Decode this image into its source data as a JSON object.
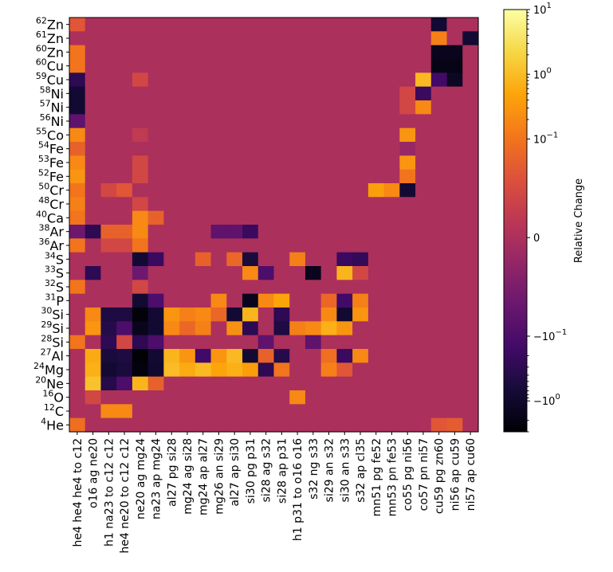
{
  "chart_data": {
    "type": "heatmap",
    "title": "",
    "ylabels": [
      {
        "mass": "62",
        "el": "Zn"
      },
      {
        "mass": "61",
        "el": "Zn"
      },
      {
        "mass": "60",
        "el": "Zn"
      },
      {
        "mass": "60",
        "el": "Cu"
      },
      {
        "mass": "59",
        "el": "Cu"
      },
      {
        "mass": "58",
        "el": "Ni"
      },
      {
        "mass": "57",
        "el": "Ni"
      },
      {
        "mass": "56",
        "el": "Ni"
      },
      {
        "mass": "55",
        "el": "Co"
      },
      {
        "mass": "54",
        "el": "Fe"
      },
      {
        "mass": "53",
        "el": "Fe"
      },
      {
        "mass": "52",
        "el": "Fe"
      },
      {
        "mass": "50",
        "el": "Cr"
      },
      {
        "mass": "48",
        "el": "Cr"
      },
      {
        "mass": "40",
        "el": "Ca"
      },
      {
        "mass": "38",
        "el": "Ar"
      },
      {
        "mass": "36",
        "el": "Ar"
      },
      {
        "mass": "34",
        "el": "S"
      },
      {
        "mass": "33",
        "el": "S"
      },
      {
        "mass": "32",
        "el": "S"
      },
      {
        "mass": "31",
        "el": "P"
      },
      {
        "mass": "30",
        "el": "Si"
      },
      {
        "mass": "29",
        "el": "Si"
      },
      {
        "mass": "28",
        "el": "Si"
      },
      {
        "mass": "27",
        "el": "Al"
      },
      {
        "mass": "24",
        "el": "Mg"
      },
      {
        "mass": "20",
        "el": "Ne"
      },
      {
        "mass": "16",
        "el": "O"
      },
      {
        "mass": "12",
        "el": "C"
      },
      {
        "mass": "4",
        "el": "He"
      }
    ],
    "xlabels": [
      "he4 he4 he4 to c12",
      "o16 ag ne20",
      "h1 na23 to c12 c12",
      "he4 ne20 to c12 c12",
      "ne20 ag mg24",
      "na23 ap mg24",
      "al27 pg si28",
      "mg24 ag si28",
      "mg24 ap al27",
      "mg26 an si29",
      "al27 ap si30",
      "si30 pg p31",
      "si28 ag s32",
      "si28 ap p31",
      "h1 p31 to o16 o16",
      "s32 ng s33",
      "si29 an s32",
      "si30 an s33",
      "s32 ap cl35",
      "mn51 pg fe52",
      "mn53 pn fe53",
      "co55 pg ni56",
      "co57 pn ni57",
      "cu59 pg zn60",
      "ni56 ap cu59",
      "ni57 ap cu60"
    ],
    "colorbar": {
      "label": "Relative Change",
      "scale": "symlog",
      "colormap": "inferno",
      "range": [
        -3,
        10
      ],
      "linthresh": 0.03,
      "ticks": [
        {
          "value": 10,
          "base": "10",
          "exp": "1"
        },
        {
          "value": 1,
          "base": "10",
          "exp": "0"
        },
        {
          "value": 0.1,
          "base": "10",
          "exp": "−1"
        },
        {
          "value": 0,
          "base": "0",
          "exp": ""
        },
        {
          "value": -0.1,
          "base": "−10",
          "exp": "−1"
        },
        {
          "value": -1,
          "base": "−10",
          "exp": "0"
        }
      ]
    },
    "background_value": 0,
    "cells": [
      [
        0,
        0,
        0.03
      ],
      [
        0,
        23,
        -0.8
      ],
      [
        1,
        23,
        0.15
      ],
      [
        1,
        25,
        -0.8
      ],
      [
        2,
        0,
        0.1
      ],
      [
        2,
        23,
        -1.5
      ],
      [
        2,
        24,
        -1.5
      ],
      [
        3,
        0,
        0.1
      ],
      [
        3,
        23,
        -1.8
      ],
      [
        3,
        24,
        -1.8
      ],
      [
        4,
        0,
        -0.3
      ],
      [
        4,
        4,
        0.02
      ],
      [
        4,
        23,
        -0.15
      ],
      [
        4,
        24,
        -1.2
      ],
      [
        4,
        22,
        0.9
      ],
      [
        5,
        0,
        -0.8
      ],
      [
        5,
        21,
        0.02
      ],
      [
        5,
        22,
        -0.2
      ],
      [
        6,
        0,
        -0.8
      ],
      [
        6,
        22,
        0.2
      ],
      [
        6,
        21,
        0.02
      ],
      [
        7,
        0,
        -0.05
      ],
      [
        8,
        0,
        0.2
      ],
      [
        8,
        21,
        0.3
      ],
      [
        8,
        4,
        0.01
      ],
      [
        9,
        0,
        0.05
      ],
      [
        9,
        21,
        -0.01
      ],
      [
        10,
        0,
        0.2
      ],
      [
        10,
        21,
        0.3
      ],
      [
        10,
        4,
        0.02
      ],
      [
        11,
        0,
        0.3
      ],
      [
        11,
        21,
        0.1
      ],
      [
        11,
        4,
        0.02
      ],
      [
        12,
        0,
        0.1
      ],
      [
        12,
        19,
        0.4
      ],
      [
        12,
        20,
        0.2
      ],
      [
        12,
        21,
        -0.8
      ],
      [
        12,
        2,
        0.02
      ],
      [
        12,
        3,
        0.03
      ],
      [
        13,
        0,
        0.15
      ],
      [
        13,
        4,
        0.02
      ],
      [
        14,
        0,
        0.1
      ],
      [
        14,
        4,
        0.2
      ],
      [
        14,
        5,
        0.05
      ],
      [
        15,
        0,
        -0.03
      ],
      [
        15,
        1,
        -0.3
      ],
      [
        15,
        2,
        0.05
      ],
      [
        15,
        3,
        0.05
      ],
      [
        15,
        4,
        0.2
      ],
      [
        15,
        9,
        -0.05
      ],
      [
        15,
        10,
        -0.05
      ],
      [
        15,
        11,
        -0.2
      ],
      [
        16,
        0,
        0.1
      ],
      [
        16,
        2,
        0.02
      ],
      [
        16,
        3,
        0.02
      ],
      [
        16,
        4,
        0.1
      ],
      [
        17,
        4,
        -0.8
      ],
      [
        17,
        5,
        -0.2
      ],
      [
        17,
        8,
        0.05
      ],
      [
        17,
        10,
        0.06
      ],
      [
        17,
        11,
        -0.6
      ],
      [
        17,
        14,
        0.15
      ],
      [
        17,
        17,
        -0.2
      ],
      [
        17,
        18,
        -0.25
      ],
      [
        18,
        1,
        -0.3
      ],
      [
        18,
        4,
        -0.03
      ],
      [
        18,
        11,
        0.2
      ],
      [
        18,
        12,
        -0.1
      ],
      [
        18,
        15,
        -1.5
      ],
      [
        18,
        17,
        0.8
      ],
      [
        18,
        18,
        0.02
      ],
      [
        19,
        0,
        0.1
      ],
      [
        19,
        4,
        0.02
      ],
      [
        20,
        4,
        -0.8
      ],
      [
        20,
        5,
        -0.1
      ],
      [
        20,
        9,
        0.2
      ],
      [
        20,
        11,
        -1.5
      ],
      [
        20,
        12,
        0.2
      ],
      [
        20,
        13,
        0.5
      ],
      [
        20,
        16,
        0.06
      ],
      [
        20,
        17,
        -0.15
      ],
      [
        20,
        18,
        0.15
      ],
      [
        21,
        1,
        0.2
      ],
      [
        21,
        2,
        -0.5
      ],
      [
        21,
        3,
        -0.5
      ],
      [
        21,
        4,
        -2.5
      ],
      [
        21,
        5,
        -0.8
      ],
      [
        21,
        6,
        0.3
      ],
      [
        21,
        7,
        0.15
      ],
      [
        21,
        8,
        0.2
      ],
      [
        21,
        9,
        0.06
      ],
      [
        21,
        10,
        -0.8
      ],
      [
        21,
        11,
        0.8
      ],
      [
        21,
        13,
        -0.3
      ],
      [
        21,
        16,
        0.2
      ],
      [
        21,
        17,
        -0.8
      ],
      [
        21,
        18,
        0.3
      ],
      [
        22,
        1,
        0.3
      ],
      [
        22,
        2,
        -0.4
      ],
      [
        22,
        3,
        -0.1
      ],
      [
        22,
        4,
        -1.5
      ],
      [
        22,
        5,
        -0.8
      ],
      [
        22,
        6,
        0.2
      ],
      [
        22,
        7,
        0.06
      ],
      [
        22,
        8,
        0.15
      ],
      [
        22,
        10,
        0.25
      ],
      [
        22,
        11,
        -0.3
      ],
      [
        22,
        13,
        -0.5
      ],
      [
        22,
        14,
        0.15
      ],
      [
        22,
        15,
        0.2
      ],
      [
        22,
        16,
        0.7
      ],
      [
        22,
        17,
        0.3
      ],
      [
        23,
        0,
        0.1
      ],
      [
        23,
        2,
        -0.3
      ],
      [
        23,
        3,
        0.02
      ],
      [
        23,
        4,
        -0.3
      ],
      [
        23,
        5,
        -0.1
      ],
      [
        23,
        12,
        -0.05
      ],
      [
        23,
        15,
        -0.05
      ],
      [
        24,
        1,
        0.6
      ],
      [
        24,
        2,
        -0.6
      ],
      [
        24,
        3,
        -0.5
      ],
      [
        24,
        4,
        -2.8
      ],
      [
        24,
        5,
        -0.8
      ],
      [
        24,
        6,
        0.8
      ],
      [
        24,
        7,
        0.3
      ],
      [
        24,
        8,
        -0.15
      ],
      [
        24,
        9,
        0.3
      ],
      [
        24,
        10,
        0.9
      ],
      [
        24,
        11,
        -0.8
      ],
      [
        24,
        12,
        0.05
      ],
      [
        24,
        13,
        -0.4
      ],
      [
        24,
        16,
        0.08
      ],
      [
        24,
        17,
        -0.2
      ],
      [
        24,
        18,
        0.2
      ],
      [
        25,
        1,
        0.7
      ],
      [
        25,
        2,
        -0.8
      ],
      [
        25,
        3,
        -0.6
      ],
      [
        25,
        4,
        -2.2
      ],
      [
        25,
        5,
        -0.9
      ],
      [
        25,
        6,
        1.0
      ],
      [
        25,
        7,
        0.6
      ],
      [
        25,
        8,
        0.9
      ],
      [
        25,
        9,
        0.5
      ],
      [
        25,
        10,
        0.7
      ],
      [
        25,
        11,
        0.4
      ],
      [
        25,
        12,
        -0.3
      ],
      [
        25,
        13,
        0.1
      ],
      [
        25,
        16,
        0.15
      ],
      [
        25,
        17,
        0.03
      ],
      [
        26,
        1,
        1.2
      ],
      [
        26,
        2,
        -0.4
      ],
      [
        26,
        3,
        -0.1
      ],
      [
        26,
        4,
        0.8
      ],
      [
        26,
        5,
        0.05
      ],
      [
        27,
        1,
        0.02
      ],
      [
        27,
        14,
        0.2
      ],
      [
        28,
        2,
        0.2
      ],
      [
        28,
        3,
        0.2
      ],
      [
        29,
        0,
        0.08
      ],
      [
        29,
        23,
        0.03
      ],
      [
        29,
        24,
        0.04
      ]
    ]
  }
}
